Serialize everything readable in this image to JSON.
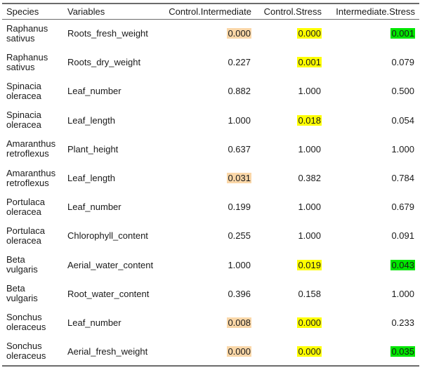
{
  "colors": {
    "intermediate_highlight": "#fad7a8",
    "stress_highlight": "#ffff00",
    "intermediate_stress_highlight": "#00e600"
  },
  "headers": {
    "species": "Species",
    "variables": "Variables",
    "control_intermediate": "Control.Intermediate",
    "control_stress": "Control.Stress",
    "intermediate_stress": "Intermediate.Stress"
  },
  "rows": [
    {
      "species_genus": "Raphanus",
      "species_epithet": "sativus",
      "variable": "Roots_fresh_weight",
      "ci": {
        "value": "0.000",
        "highlight": "#fad7a8"
      },
      "cs": {
        "value": "0.000",
        "highlight": "#ffff00"
      },
      "is": {
        "value": "0.001",
        "highlight": "#00e600"
      }
    },
    {
      "species_genus": "Raphanus",
      "species_epithet": "sativus",
      "variable": "Roots_dry_weight",
      "ci": {
        "value": "0.227",
        "highlight": ""
      },
      "cs": {
        "value": "0.001",
        "highlight": "#ffff00"
      },
      "is": {
        "value": "0.079",
        "highlight": ""
      }
    },
    {
      "species_genus": "Spinacia",
      "species_epithet": "oleracea",
      "variable": "Leaf_number",
      "ci": {
        "value": "0.882",
        "highlight": ""
      },
      "cs": {
        "value": "1.000",
        "highlight": ""
      },
      "is": {
        "value": "0.500",
        "highlight": ""
      }
    },
    {
      "species_genus": "Spinacia",
      "species_epithet": "oleracea",
      "variable": "Leaf_length",
      "ci": {
        "value": "1.000",
        "highlight": ""
      },
      "cs": {
        "value": "0.018",
        "highlight": "#ffff00"
      },
      "is": {
        "value": "0.054",
        "highlight": ""
      }
    },
    {
      "species_genus": "Amaranthus",
      "species_epithet": "retroflexus",
      "variable": "Plant_height",
      "ci": {
        "value": "0.637",
        "highlight": ""
      },
      "cs": {
        "value": "1.000",
        "highlight": ""
      },
      "is": {
        "value": "1.000",
        "highlight": ""
      }
    },
    {
      "species_genus": "Amaranthus",
      "species_epithet": "retroflexus",
      "variable": "Leaf_length",
      "ci": {
        "value": "0.031",
        "highlight": "#fad7a8"
      },
      "cs": {
        "value": "0.382",
        "highlight": ""
      },
      "is": {
        "value": "0.784",
        "highlight": ""
      }
    },
    {
      "species_genus": "Portulaca",
      "species_epithet": "oleracea",
      "variable": "Leaf_number",
      "ci": {
        "value": "0.199",
        "highlight": ""
      },
      "cs": {
        "value": "1.000",
        "highlight": ""
      },
      "is": {
        "value": "0.679",
        "highlight": ""
      }
    },
    {
      "species_genus": "Portulaca",
      "species_epithet": "oleracea",
      "variable": "Chlorophyll_content",
      "ci": {
        "value": "0.255",
        "highlight": ""
      },
      "cs": {
        "value": "1.000",
        "highlight": ""
      },
      "is": {
        "value": "0.091",
        "highlight": ""
      }
    },
    {
      "species_genus": "Beta",
      "species_epithet": "vulgaris",
      "variable": "Aerial_water_content",
      "ci": {
        "value": "1.000",
        "highlight": ""
      },
      "cs": {
        "value": "0.019",
        "highlight": "#ffff00"
      },
      "is": {
        "value": "0.043",
        "highlight": "#00e600"
      }
    },
    {
      "species_genus": "Beta",
      "species_epithet": "vulgaris",
      "variable": "Root_water_content",
      "ci": {
        "value": "0.396",
        "highlight": ""
      },
      "cs": {
        "value": "0.158",
        "highlight": ""
      },
      "is": {
        "value": "1.000",
        "highlight": ""
      }
    },
    {
      "species_genus": "Sonchus",
      "species_epithet": "oleraceus",
      "variable": "Leaf_number",
      "ci": {
        "value": "0.008",
        "highlight": "#fad7a8"
      },
      "cs": {
        "value": "0.000",
        "highlight": "#ffff00"
      },
      "is": {
        "value": "0.233",
        "highlight": ""
      }
    },
    {
      "species_genus": "Sonchus",
      "species_epithet": "oleraceus",
      "variable": "Aerial_fresh_weight",
      "ci": {
        "value": "0.000",
        "highlight": "#fad7a8"
      },
      "cs": {
        "value": "0.000",
        "highlight": "#ffff00"
      },
      "is": {
        "value": "0.035",
        "highlight": "#00e600"
      }
    }
  ]
}
